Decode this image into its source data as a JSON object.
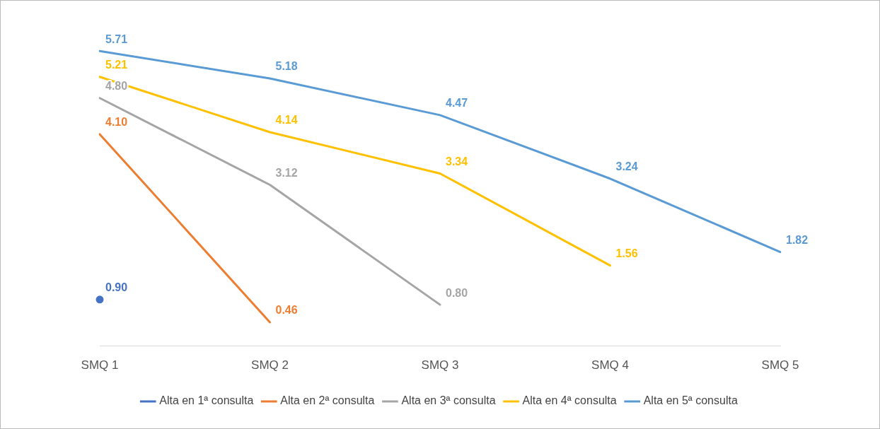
{
  "chart_data": {
    "type": "line",
    "categories": [
      "SMQ 1",
      "SMQ 2",
      "SMQ 3",
      "SMQ 4",
      "SMQ 5"
    ],
    "series": [
      {
        "name": "Alta en 1ª consulta",
        "color": "#4472c4",
        "marker": "circle",
        "values": [
          0.9,
          null,
          null,
          null,
          null
        ],
        "value_labels": [
          "0.90",
          null,
          null,
          null,
          null
        ]
      },
      {
        "name": "Alta en 2ª consulta",
        "color": "#ed7d31",
        "values": [
          4.1,
          0.46,
          null,
          null,
          null
        ],
        "value_labels": [
          "4.10",
          "0.46",
          null,
          null,
          null
        ]
      },
      {
        "name": "Alta en 3ª consulta",
        "color": "#a5a5a5",
        "values": [
          4.8,
          3.12,
          0.8,
          null,
          null
        ],
        "value_labels": [
          "4.80",
          "3.12",
          "0.80",
          null,
          null
        ]
      },
      {
        "name": "Alta en 4ª consulta",
        "color": "#ffc000",
        "values": [
          5.21,
          4.14,
          3.34,
          1.56,
          null
        ],
        "value_labels": [
          "5.21",
          "4.14",
          "3.34",
          "1.56",
          null
        ]
      },
      {
        "name": "Alta en 5ª consulta",
        "color": "#5b9bd5",
        "values": [
          5.71,
          5.18,
          4.47,
          3.24,
          1.82
        ],
        "value_labels": [
          "5.71",
          "5.18",
          "4.47",
          "3.24",
          "1.82"
        ]
      }
    ],
    "legend": "bottom",
    "grid": false,
    "line_style": "solid",
    "tick_labels": "x"
  }
}
